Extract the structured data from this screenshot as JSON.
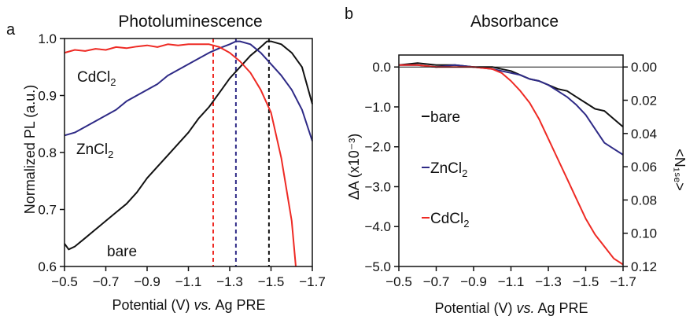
{
  "figure": {
    "colors": {
      "bare": "#111111",
      "ZnCl2": "#2e2a86",
      "CdCl2": "#ee2a24",
      "axis": "#111111"
    }
  },
  "chart_data": [
    {
      "panel_label": "a",
      "type": "line",
      "title": "Photoluminescence",
      "xlabel_parts": [
        "Potential (V) ",
        "vs.",
        " Ag PRE"
      ],
      "ylabel": "Normalized PL (a.u.)",
      "xlim": [
        -0.5,
        -1.7
      ],
      "ylim": [
        0.6,
        1.0
      ],
      "xticks": [
        -0.5,
        -0.7,
        -0.9,
        -1.1,
        -1.3,
        -1.5,
        -1.7
      ],
      "xtick_labels": [
        "−0.5",
        "−0.7",
        "−0.9",
        "−1.1",
        "−1.3",
        "−1.5",
        "−1.7"
      ],
      "yticks": [
        0.6,
        0.7,
        0.8,
        0.9,
        1.0
      ],
      "ytick_labels": [
        "0.6",
        "0.7",
        "0.8",
        "0.9",
        "1.0"
      ],
      "series": [
        {
          "key": "bare",
          "label": "bare",
          "color": "#111111",
          "x": [
            -0.5,
            -0.52,
            -0.55,
            -0.6,
            -0.65,
            -0.7,
            -0.75,
            -0.8,
            -0.85,
            -0.9,
            -0.95,
            -1.0,
            -1.05,
            -1.1,
            -1.15,
            -1.2,
            -1.25,
            -1.3,
            -1.35,
            -1.4,
            -1.45,
            -1.48,
            -1.5,
            -1.55,
            -1.6,
            -1.65,
            -1.7
          ],
          "y": [
            0.64,
            0.63,
            0.635,
            0.65,
            0.665,
            0.68,
            0.695,
            0.71,
            0.73,
            0.755,
            0.775,
            0.795,
            0.815,
            0.835,
            0.86,
            0.88,
            0.905,
            0.93,
            0.95,
            0.97,
            0.985,
            0.995,
            0.995,
            0.99,
            0.975,
            0.95,
            0.885
          ]
        },
        {
          "key": "ZnCl2",
          "label": "ZnCl",
          "sub": "2",
          "color": "#2e2a86",
          "x": [
            -0.5,
            -0.55,
            -0.6,
            -0.65,
            -0.7,
            -0.75,
            -0.8,
            -0.85,
            -0.9,
            -0.95,
            -1.0,
            -1.05,
            -1.1,
            -1.15,
            -1.2,
            -1.25,
            -1.3,
            -1.33,
            -1.35,
            -1.4,
            -1.45,
            -1.5,
            -1.55,
            -1.6,
            -1.65,
            -1.7
          ],
          "y": [
            0.83,
            0.835,
            0.845,
            0.855,
            0.865,
            0.875,
            0.89,
            0.9,
            0.91,
            0.92,
            0.935,
            0.945,
            0.955,
            0.965,
            0.975,
            0.983,
            0.99,
            0.995,
            0.995,
            0.99,
            0.975,
            0.955,
            0.935,
            0.91,
            0.875,
            0.82
          ]
        },
        {
          "key": "CdCl2",
          "label": "CdCl",
          "sub": "2",
          "color": "#ee2a24",
          "x": [
            -0.5,
            -0.55,
            -0.6,
            -0.65,
            -0.7,
            -0.75,
            -0.8,
            -0.85,
            -0.9,
            -0.95,
            -1.0,
            -1.05,
            -1.1,
            -1.15,
            -1.2,
            -1.25,
            -1.3,
            -1.35,
            -1.4,
            -1.45,
            -1.5,
            -1.55,
            -1.6,
            -1.62
          ],
          "y": [
            0.975,
            0.98,
            0.978,
            0.982,
            0.98,
            0.985,
            0.983,
            0.986,
            0.988,
            0.985,
            0.99,
            0.988,
            0.99,
            0.99,
            0.99,
            0.985,
            0.975,
            0.96,
            0.94,
            0.91,
            0.87,
            0.79,
            0.68,
            0.6
          ]
        }
      ],
      "vlines": [
        {
          "x": -1.22,
          "color": "#ee2a24"
        },
        {
          "x": -1.33,
          "color": "#2e2a86"
        },
        {
          "x": -1.49,
          "color": "#111111"
        }
      ]
    },
    {
      "panel_label": "b",
      "type": "line",
      "title": "Absorbance",
      "xlabel_parts": [
        "Potential (V) ",
        "vs.",
        " Ag PRE"
      ],
      "ylabel": "ΔA (x10⁻³)",
      "ylabel_right": "<N₁ₛₑ>",
      "xlim": [
        -0.5,
        -1.7
      ],
      "ylim": [
        -5.0,
        0.3
      ],
      "xticks": [
        -0.5,
        -0.7,
        -0.9,
        -1.1,
        -1.3,
        -1.5,
        -1.7
      ],
      "xtick_labels": [
        "−0.5",
        "−0.7",
        "−0.9",
        "−1.1",
        "−1.3",
        "−1.5",
        "−1.7"
      ],
      "yticks": [
        0.0,
        -1.0,
        -2.0,
        -3.0,
        -4.0,
        -5.0
      ],
      "ytick_labels": [
        "0.0",
        "−1.0",
        "−2.0",
        "−3.0",
        "−4.0",
        "−5.0"
      ],
      "right_axis": {
        "ylim": [
          0.0,
          0.12
        ],
        "ticks": [
          0.0,
          0.02,
          0.04,
          0.06,
          0.08,
          0.1,
          0.12
        ],
        "tick_labels": [
          "0.00",
          "0.02",
          "0.04",
          "0.06",
          "0.08",
          "0.10",
          "0.12"
        ]
      },
      "series": [
        {
          "key": "bare",
          "label": "bare",
          "color": "#111111",
          "x": [
            -0.5,
            -0.6,
            -0.7,
            -0.8,
            -0.9,
            -1.0,
            -1.05,
            -1.1,
            -1.15,
            -1.2,
            -1.25,
            -1.3,
            -1.35,
            -1.4,
            -1.45,
            -1.5,
            -1.55,
            -1.6,
            -1.65,
            -1.7
          ],
          "y": [
            0.05,
            0.1,
            0.05,
            0.05,
            0.0,
            0.0,
            -0.05,
            -0.1,
            -0.2,
            -0.3,
            -0.35,
            -0.45,
            -0.55,
            -0.6,
            -0.75,
            -0.9,
            -1.05,
            -1.1,
            -1.3,
            -1.5
          ]
        },
        {
          "key": "ZnCl2",
          "label": "ZnCl",
          "sub": "2",
          "color": "#2e2a86",
          "x": [
            -0.5,
            -0.6,
            -0.7,
            -0.8,
            -0.9,
            -1.0,
            -1.1,
            -1.15,
            -1.2,
            -1.25,
            -1.3,
            -1.35,
            -1.4,
            -1.45,
            -1.5,
            -1.55,
            -1.6,
            -1.65,
            -1.7
          ],
          "y": [
            0.05,
            0.05,
            0.0,
            0.05,
            0.0,
            -0.05,
            -0.15,
            -0.2,
            -0.3,
            -0.35,
            -0.45,
            -0.6,
            -0.75,
            -0.95,
            -1.2,
            -1.55,
            -1.9,
            -2.05,
            -2.2
          ]
        },
        {
          "key": "CdCl2",
          "label": "CdCl",
          "sub": "2",
          "color": "#ee2a24",
          "x": [
            -0.5,
            -0.6,
            -0.7,
            -0.8,
            -0.9,
            -1.0,
            -1.05,
            -1.1,
            -1.15,
            -1.2,
            -1.25,
            -1.3,
            -1.35,
            -1.4,
            -1.45,
            -1.5,
            -1.55,
            -1.6,
            -1.65,
            -1.7
          ],
          "y": [
            0.05,
            0.05,
            0.0,
            0.0,
            0.0,
            -0.05,
            -0.15,
            -0.35,
            -0.6,
            -0.9,
            -1.3,
            -1.8,
            -2.3,
            -2.8,
            -3.3,
            -3.8,
            -4.2,
            -4.5,
            -4.8,
            -4.95
          ]
        }
      ]
    }
  ]
}
